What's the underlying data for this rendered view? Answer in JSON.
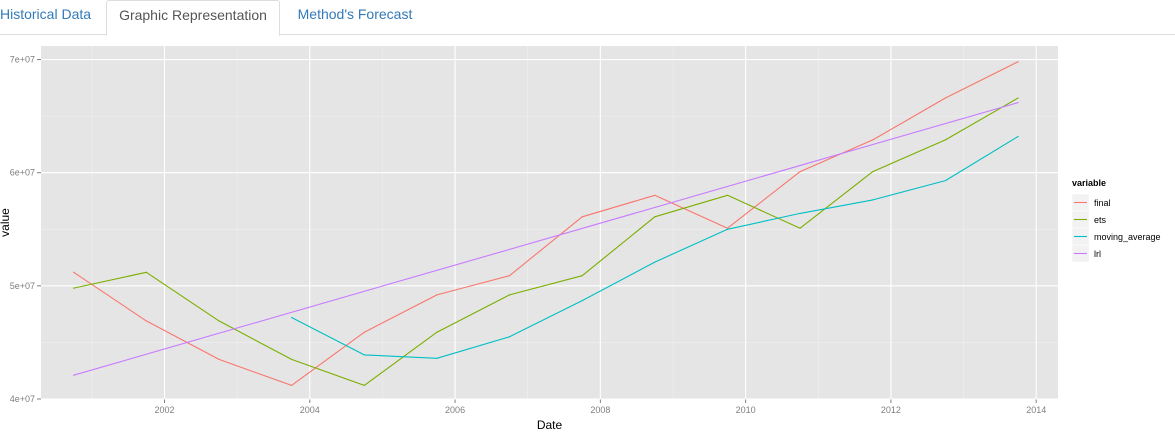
{
  "tabs": [
    {
      "label": "Historical Data",
      "active": false
    },
    {
      "label": "Graphic Representation",
      "active": true
    },
    {
      "label": "Method's Forecast",
      "active": false
    }
  ],
  "colors": {
    "panel_background": "#e5e5e5",
    "grid_major": "#ffffff",
    "grid_minor": "#f0f0f0",
    "tab_link": "#337ab7",
    "tab_active_text": "#555555",
    "final": "#f8766d",
    "ets": "#7cae00",
    "moving_average": "#00bfc4",
    "lrl": "#c77cff"
  },
  "chart_data": {
    "type": "line",
    "title": "",
    "xlabel": "Date",
    "ylabel": "value",
    "xlim": [
      2000.3,
      2014.3
    ],
    "ylim": [
      40000000,
      71200000
    ],
    "x_ticks": [
      2002,
      2004,
      2006,
      2008,
      2010,
      2012,
      2014
    ],
    "x_tick_labels": [
      "2002",
      "2004",
      "2006",
      "2008",
      "2010",
      "2012",
      "2014"
    ],
    "y_ticks": [
      40000000,
      50000000,
      60000000,
      70000000
    ],
    "y_tick_labels": [
      "4e+07",
      "5e+07",
      "6e+07",
      "7e+07"
    ],
    "grid": true,
    "legend": {
      "title": "variable",
      "placement": "right",
      "entries": [
        "final",
        "ets",
        "moving_average",
        "lrl"
      ]
    },
    "series": [
      {
        "name": "final",
        "color": "#f8766d",
        "points": [
          [
            2000.75,
            51200000
          ],
          [
            2001.75,
            46900000
          ],
          [
            2002.75,
            43500000
          ],
          [
            2003.75,
            41200000
          ],
          [
            2004.75,
            45900000
          ],
          [
            2005.75,
            49200000
          ],
          [
            2006.75,
            50900000
          ],
          [
            2007.75,
            56100000
          ],
          [
            2008.75,
            58000000
          ],
          [
            2009.75,
            55100000
          ],
          [
            2010.75,
            60100000
          ],
          [
            2011.75,
            62900000
          ],
          [
            2012.75,
            66600000
          ],
          [
            2013.75,
            69800000
          ]
        ]
      },
      {
        "name": "ets",
        "color": "#7cae00",
        "points": [
          [
            2000.75,
            49800000
          ],
          [
            2001.75,
            51200000
          ],
          [
            2002.75,
            46900000
          ],
          [
            2003.75,
            43500000
          ],
          [
            2004.75,
            41200000
          ],
          [
            2005.75,
            45900000
          ],
          [
            2006.75,
            49200000
          ],
          [
            2007.75,
            50900000
          ],
          [
            2008.75,
            56100000
          ],
          [
            2009.75,
            58000000
          ],
          [
            2010.75,
            55100000
          ],
          [
            2011.75,
            60100000
          ],
          [
            2012.75,
            62900000
          ],
          [
            2013.75,
            66600000
          ]
        ]
      },
      {
        "name": "moving_average",
        "color": "#00bfc4",
        "points": [
          [
            2003.75,
            47200000
          ],
          [
            2004.75,
            43900000
          ],
          [
            2005.75,
            43600000
          ],
          [
            2006.75,
            45500000
          ],
          [
            2007.75,
            48700000
          ],
          [
            2008.75,
            52100000
          ],
          [
            2009.75,
            55000000
          ],
          [
            2010.75,
            56400000
          ],
          [
            2011.75,
            57600000
          ],
          [
            2012.75,
            59300000
          ],
          [
            2013.75,
            63200000
          ]
        ]
      },
      {
        "name": "lrl",
        "color": "#c77cff",
        "points": [
          [
            2000.75,
            42100000
          ],
          [
            2013.75,
            66200000
          ]
        ]
      }
    ]
  }
}
